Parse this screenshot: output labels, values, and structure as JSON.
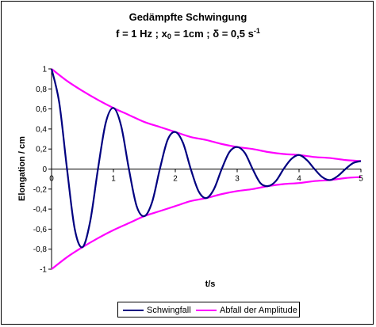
{
  "chart_data": {
    "type": "line",
    "title": "Gedämpfte Schwingung",
    "subtitle": {
      "part1": "f = 1 Hz ; x",
      "sub": "0",
      "part2": " = 1cm ; δ = 0,5 s",
      "sup": "-1"
    },
    "xlabel": "t/s",
    "ylabel": "Elongation / cm",
    "xlim": [
      0,
      5
    ],
    "ylim": [
      -1,
      1
    ],
    "x_ticks": [
      "0",
      "1",
      "2",
      "3",
      "4",
      "5"
    ],
    "y_ticks": [
      "1",
      "0,8",
      "0,6",
      "0,4",
      "0,2",
      "0",
      "-0,2",
      "-0,4",
      "-0,6",
      "-0,8",
      "-1"
    ],
    "grid": false,
    "legend_position": "bottom",
    "series": [
      {
        "name": "Schwingfall",
        "color": "#000080",
        "x": [
          0,
          0.125,
          0.25,
          0.375,
          0.5,
          0.625,
          0.75,
          0.875,
          1,
          1.125,
          1.25,
          1.375,
          1.5,
          1.625,
          1.75,
          1.875,
          2,
          2.125,
          2.25,
          2.375,
          2.5,
          2.625,
          2.75,
          2.875,
          3,
          3.125,
          3.25,
          3.375,
          3.5,
          3.625,
          3.75,
          3.875,
          4,
          4.125,
          4.25,
          4.375,
          4.5,
          4.625,
          4.75,
          4.875,
          5
        ],
        "y": [
          1,
          0.66,
          0,
          -0.6,
          -0.78,
          -0.52,
          0,
          0.46,
          0.61,
          0.43,
          0,
          -0.37,
          -0.47,
          -0.33,
          0,
          0.29,
          0.37,
          0.26,
          0,
          -0.22,
          -0.29,
          -0.2,
          0,
          0.17,
          0.22,
          0.16,
          0,
          -0.14,
          -0.17,
          -0.12,
          0,
          0.1,
          0.14,
          0.09,
          0,
          -0.08,
          -0.11,
          -0.07,
          0,
          0.06,
          0.08
        ]
      },
      {
        "name": "Abfall der Amplitude",
        "color": "#ff00ff",
        "x": [
          0,
          0.25,
          0.5,
          0.75,
          1,
          1.25,
          1.5,
          1.75,
          2,
          2.25,
          2.5,
          2.75,
          3,
          3.25,
          3.5,
          3.75,
          4,
          4.25,
          4.5,
          4.75,
          5
        ],
        "y": [
          1,
          0.88,
          0.78,
          0.69,
          0.61,
          0.54,
          0.47,
          0.42,
          0.37,
          0.32,
          0.29,
          0.25,
          0.22,
          0.2,
          0.17,
          0.15,
          0.14,
          0.12,
          0.11,
          0.09,
          0.08
        ],
        "mirror_negative": true
      }
    ]
  }
}
